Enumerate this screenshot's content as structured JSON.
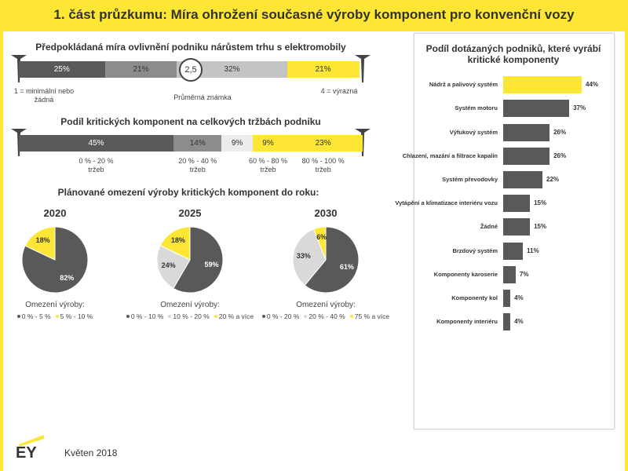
{
  "title": "1. část průzkumu: Míra ohrožení současné výroby komponent pro konvenční vozy",
  "pie_section_title": "Plánované omezení výroby kritických komponent do roku:",
  "footer": {
    "logo": "EY",
    "date": "Květen 2018"
  },
  "chart_data": [
    {
      "type": "stacked_bar",
      "title": "Předpokládaná míra ovlivnění podniku nárůstem trhu s elektromobily",
      "values": [
        25,
        21,
        32,
        21
      ],
      "value_labels": [
        "25%",
        "21%",
        "32%",
        "21%"
      ],
      "colors": [
        "#595959",
        "#8c8c8c",
        "#c4c4c4",
        "#fde634"
      ],
      "xlim": [
        0,
        100
      ],
      "scale": [
        {
          "value": 1,
          "label": "1 = minimální nebo\nžádná"
        },
        {
          "value": 4,
          "label": "4 = výrazná"
        }
      ],
      "average": {
        "value": 2.5,
        "label": "2,5"
      },
      "average_label": "Průměrná známka"
    },
    {
      "type": "stacked_bar",
      "title": "Podíl kritických komponent na celkových tržbách podniku",
      "values": [
        45,
        14,
        9,
        9,
        23
      ],
      "value_labels": [
        "45%",
        "14%",
        "9%",
        "9%",
        "23%"
      ],
      "categories": [
        "0 % - 20 %\ntržeb",
        "20 % - 40 %\ntržeb",
        null,
        "60 % - 80 %\ntržeb",
        "80 % - 100 %\ntržeb"
      ],
      "colors": [
        "#595959",
        "#8c8c8c",
        "#ececec",
        "#fde634",
        "#fde634"
      ],
      "xlim": [
        0,
        100
      ]
    },
    {
      "type": "pie",
      "title": "2020",
      "categories": [
        "0 % - 5 %",
        "5 % - 10 %"
      ],
      "values": [
        82,
        18
      ],
      "value_labels": [
        "82%",
        "18%"
      ],
      "colors": [
        "#595959",
        "#fde634"
      ],
      "legend_title": "Omezení výroby:"
    },
    {
      "type": "pie",
      "title": "2025",
      "categories": [
        "0 % - 10 %",
        "10 % - 20 %",
        "20 % a více"
      ],
      "values": [
        59,
        24,
        18
      ],
      "value_labels": [
        "59%",
        "24%",
        "18%"
      ],
      "colors": [
        "#595959",
        "#d9d9d9",
        "#fde634"
      ],
      "legend_title": "Omezení výroby:"
    },
    {
      "type": "pie",
      "title": "2030",
      "categories": [
        "0 % - 20 %",
        "20 % - 40 %",
        "75 % a více"
      ],
      "values": [
        61,
        33,
        6
      ],
      "value_labels": [
        "61%",
        "33%",
        "6%"
      ],
      "colors": [
        "#595959",
        "#d9d9d9",
        "#fde634"
      ],
      "legend_title": "Omezení výroby:"
    },
    {
      "type": "hbar",
      "title": "Podíl dotázaných podniků, které vyrábí\nkritické komponenty",
      "categories": [
        "Nádrž a palivový systém",
        "Systém motoru",
        "Výfukový systém",
        "Chlazení, mazání a filtrace kapalin",
        "Systém převodovky",
        "Vytápění a klimatizace interiéru vozu",
        "Žádné",
        "Brzdový systém",
        "Komponenty karoserie",
        "Komponenty kol",
        "Komponenty interiéru"
      ],
      "values": [
        44,
        37,
        26,
        26,
        22,
        15,
        15,
        11,
        7,
        4,
        4
      ],
      "value_labels": [
        "44%",
        "37%",
        "26%",
        "26%",
        "22%",
        "15%",
        "15%",
        "11%",
        "7%",
        "4%",
        "4%"
      ],
      "colors": [
        "#fde634",
        "#595959",
        "#595959",
        "#595959",
        "#595959",
        "#595959",
        "#595959",
        "#595959",
        "#595959",
        "#595959",
        "#595959"
      ],
      "xlim": [
        0,
        44
      ]
    }
  ]
}
